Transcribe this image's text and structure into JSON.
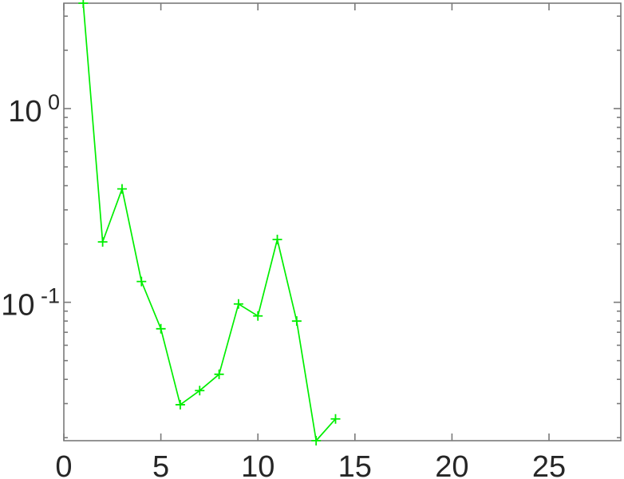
{
  "chart_data": {
    "type": "line",
    "title": "",
    "xlabel": "",
    "ylabel": "",
    "yscale": "log",
    "xscale": "linear",
    "grid": false,
    "legend": null,
    "box": true,
    "ticks_mirrored": true,
    "x": [
      1,
      2,
      3,
      4,
      5,
      6,
      7,
      8,
      9,
      10,
      11,
      12,
      13,
      14
    ],
    "values": [
      3.5,
      0.205,
      0.385,
      0.128,
      0.073,
      0.0296,
      0.035,
      0.0425,
      0.098,
      0.085,
      0.211,
      0.08,
      0.0193,
      0.025
    ],
    "xlim": [
      0,
      28.7
    ],
    "ylim": [
      0.0193,
      3.5
    ],
    "x_ticks": [
      0,
      5,
      10,
      15,
      20,
      25
    ],
    "x_tick_labels": [
      "0",
      "5",
      "10",
      "15",
      "20",
      "25"
    ],
    "y_ticks": [
      1,
      0.1
    ],
    "y_tick_labels": [
      {
        "base": "10",
        "exp": "0"
      },
      {
        "base": "10",
        "exp": "-1"
      }
    ],
    "series_name": "series-1",
    "marker": "plus",
    "line_color": "#00ee00",
    "axis_color": "#7a7a7a",
    "tick_label_color": "#262626",
    "background_color": "#ffffff"
  }
}
